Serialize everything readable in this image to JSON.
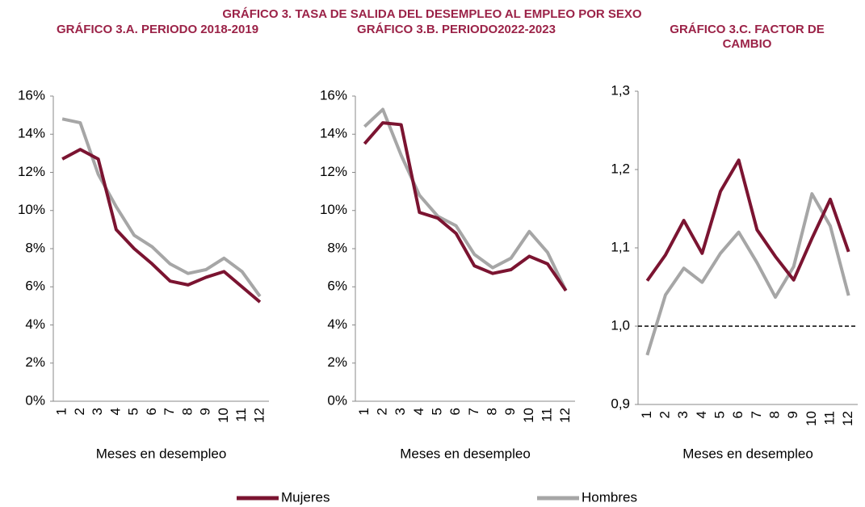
{
  "title": "GRÁFICO 3.  TASA DE SALIDA DEL DESEMPLEO AL EMPLEO POR  SEXO",
  "chart_data": [
    {
      "type": "line",
      "title": "GRÁFICO 3.A. PERIODO 2018-2019",
      "x_label": "Meses en desempleo",
      "categories": [
        "1",
        "2",
        "3",
        "4",
        "5",
        "6",
        "7",
        "8",
        "9",
        "10",
        "11",
        "12"
      ],
      "series": [
        {
          "name": "Mujeres",
          "color": "#7b1431",
          "values": [
            12.7,
            13.2,
            12.7,
            9.0,
            8.0,
            7.2,
            6.3,
            6.1,
            6.5,
            6.8,
            6.0,
            5.2
          ]
        },
        {
          "name": "Hombres",
          "color": "#a6a6a6",
          "values": [
            14.8,
            14.6,
            11.9,
            10.2,
            8.7,
            8.1,
            7.2,
            6.7,
            6.9,
            7.5,
            6.8,
            5.5
          ]
        }
      ],
      "ylim": [
        0,
        16
      ],
      "yticks": [
        {
          "value": 0,
          "label": "0%"
        },
        {
          "value": 2,
          "label": "2%"
        },
        {
          "value": 4,
          "label": "4%"
        },
        {
          "value": 6,
          "label": "6%"
        },
        {
          "value": 8,
          "label": "8%"
        },
        {
          "value": 10,
          "label": "10%"
        },
        {
          "value": 12,
          "label": "12%"
        },
        {
          "value": 14,
          "label": "14%"
        },
        {
          "value": 16,
          "label": "16%"
        }
      ]
    },
    {
      "type": "line",
      "title": "GRÁFICO 3.B. PERIODO2022-2023",
      "x_label": "Meses en desempleo",
      "categories": [
        "1",
        "2",
        "3",
        "4",
        "5",
        "6",
        "7",
        "8",
        "9",
        "10",
        "11",
        "12"
      ],
      "series": [
        {
          "color": "#7b1431",
          "values": [
            13.5,
            14.6,
            14.5,
            9.9,
            9.6,
            8.8,
            7.1,
            6.7,
            6.9,
            7.6,
            7.2,
            5.8
          ]
        },
        {
          "color": "#a6a6a6",
          "values": [
            14.4,
            15.3,
            12.9,
            10.8,
            9.7,
            9.2,
            7.7,
            7.0,
            7.5,
            8.9,
            7.8,
            5.8
          ]
        }
      ],
      "ylim": [
        0,
        16
      ],
      "yticks": [
        {
          "value": 0,
          "label": "0%"
        },
        {
          "value": 2,
          "label": "2%"
        },
        {
          "value": 4,
          "label": "4%"
        },
        {
          "value": 6,
          "label": "6%"
        },
        {
          "value": 8,
          "label": "8%"
        },
        {
          "value": 10,
          "label": "10%"
        },
        {
          "value": 12,
          "label": "12%"
        },
        {
          "value": 14,
          "label": "14%"
        },
        {
          "value": 16,
          "label": "16%"
        }
      ]
    },
    {
      "type": "line",
      "title": "GRÁFICO 3.C. FACTOR DE CAMBIO",
      "x_label": "Meses en desempleo",
      "categories": [
        "1",
        "2",
        "3",
        "4",
        "5",
        "6",
        "7",
        "8",
        "9",
        "10",
        "11",
        "12"
      ],
      "series": [
        {
          "color": "#7b1431",
          "values": [
            1.058,
            1.091,
            1.135,
            1.093,
            1.172,
            1.212,
            1.123,
            1.089,
            1.059,
            1.112,
            1.162,
            1.095
          ]
        },
        {
          "color": "#a6a6a6",
          "values": [
            0.963,
            1.04,
            1.074,
            1.056,
            1.093,
            1.12,
            1.081,
            1.037,
            1.076,
            1.169,
            1.128,
            1.039
          ]
        }
      ],
      "ylim": [
        0.9,
        1.3
      ],
      "yticks": [
        {
          "value": 0.9,
          "label": "0,9"
        },
        {
          "value": 1.0,
          "label": "1,0"
        },
        {
          "value": 1.1,
          "label": "1,1"
        },
        {
          "value": 1.2,
          "label": "1,2"
        },
        {
          "value": 1.3,
          "label": "1,3"
        }
      ],
      "hline": 1
    }
  ]
}
